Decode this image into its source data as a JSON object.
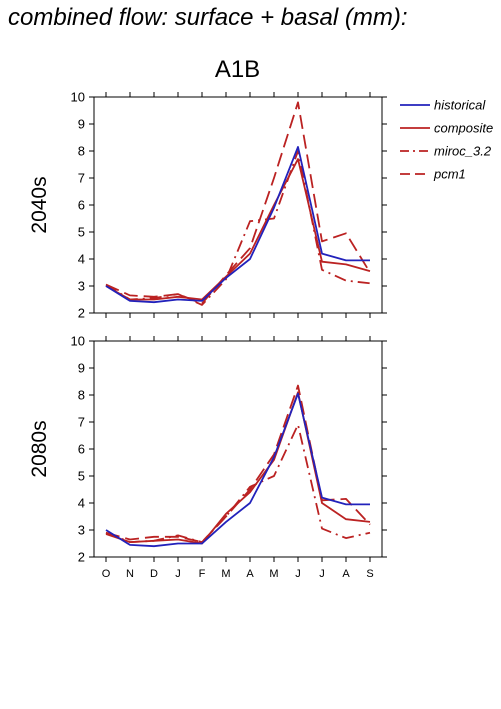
{
  "figure_title": "combined flow: surface + basal (mm):",
  "scenario_title": "A1B",
  "chart_data": [
    {
      "type": "line",
      "panel_label": "2040s",
      "categories": [
        "O",
        "N",
        "D",
        "J",
        "F",
        "M",
        "A",
        "M",
        "J",
        "J",
        "A",
        "S"
      ],
      "ylim": [
        2,
        10
      ],
      "yticks": [
        2,
        3,
        4,
        5,
        6,
        7,
        8,
        9,
        10
      ],
      "series": [
        {
          "name": "historical",
          "color": "#2222bb",
          "dash": "solid",
          "values": [
            3.0,
            2.45,
            2.4,
            2.5,
            2.45,
            3.3,
            4.0,
            5.9,
            8.15,
            4.2,
            3.95,
            3.95
          ]
        },
        {
          "name": "composite",
          "color": "#bb2222",
          "dash": "solid",
          "values": [
            3.0,
            2.5,
            2.5,
            2.6,
            2.5,
            3.35,
            4.2,
            6.0,
            7.7,
            3.9,
            3.8,
            3.55
          ]
        },
        {
          "name": "miroc_3.2",
          "color": "#bb2222",
          "dash": "dashdot",
          "values": [
            3.05,
            2.5,
            2.55,
            2.7,
            2.3,
            3.25,
            5.4,
            5.5,
            8.0,
            3.6,
            3.2,
            3.1
          ]
        },
        {
          "name": "pcm1",
          "color": "#bb2222",
          "dash": "dash",
          "values": [
            3.05,
            2.65,
            2.6,
            2.7,
            2.35,
            3.4,
            4.4,
            7.0,
            9.8,
            4.65,
            4.95,
            3.5
          ]
        }
      ]
    },
    {
      "type": "line",
      "panel_label": "2080s",
      "categories": [
        "O",
        "N",
        "D",
        "J",
        "F",
        "M",
        "A",
        "M",
        "J",
        "J",
        "A",
        "S"
      ],
      "ylim": [
        2,
        10
      ],
      "yticks": [
        2,
        3,
        4,
        5,
        6,
        7,
        8,
        9,
        10
      ],
      "series": [
        {
          "name": "historical",
          "color": "#2222bb",
          "dash": "solid",
          "values": [
            3.0,
            2.45,
            2.4,
            2.5,
            2.5,
            3.3,
            4.0,
            5.7,
            8.05,
            4.2,
            3.95,
            3.95
          ]
        },
        {
          "name": "composite",
          "color": "#bb2222",
          "dash": "solid",
          "values": [
            2.85,
            2.55,
            2.6,
            2.65,
            2.5,
            3.6,
            4.4,
            5.6,
            8.1,
            4.0,
            3.4,
            3.3
          ]
        },
        {
          "name": "miroc_3.2",
          "color": "#bb2222",
          "dash": "dashdot",
          "values": [
            2.9,
            2.55,
            2.6,
            2.8,
            2.55,
            3.5,
            4.6,
            5.0,
            6.9,
            3.05,
            2.7,
            2.9
          ]
        },
        {
          "name": "pcm1",
          "color": "#bb2222",
          "dash": "dash",
          "values": [
            2.9,
            2.65,
            2.75,
            2.75,
            2.55,
            3.5,
            4.5,
            5.8,
            8.35,
            4.1,
            4.15,
            3.2
          ]
        }
      ]
    }
  ],
  "legend": {
    "placement": "top-right",
    "items": [
      {
        "label": "historical",
        "color": "#2222bb",
        "dash": "solid"
      },
      {
        "label": "composite",
        "color": "#bb2222",
        "dash": "solid"
      },
      {
        "label": "miroc_3.2",
        "color": "#bb2222",
        "dash": "dashdot"
      },
      {
        "label": "pcm1",
        "color": "#bb2222",
        "dash": "dash"
      }
    ]
  }
}
